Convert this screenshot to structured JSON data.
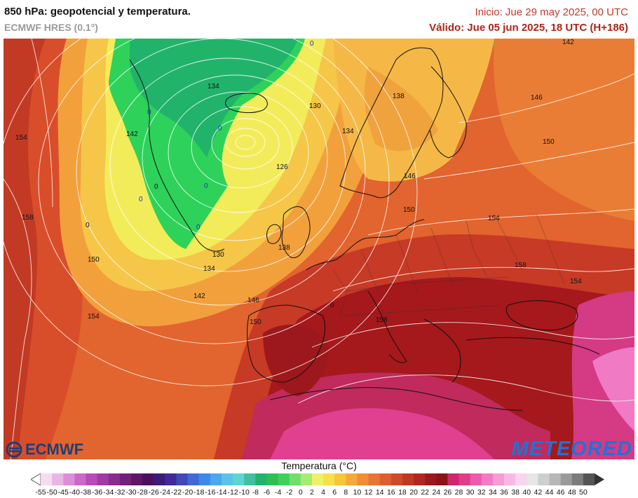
{
  "header": {
    "title": "850 hPa: geopotencial y temperatura.",
    "model": "ECMWF HRES (0.1°)",
    "init": "Inicio: Jue 29 may 2025, 00 UTC",
    "valid": "Válido: Jue 05 jun 2025, 18 UTC (H+186)"
  },
  "map": {
    "region": "Europe / North Atlantic",
    "contour_labels": [
      "142",
      "134",
      "130",
      "138",
      "146",
      "150",
      "134",
      "142",
      "126",
      "150",
      "158",
      "154",
      "154",
      "158",
      "146",
      "150",
      "154",
      "130",
      "134",
      "138",
      "142",
      "146",
      "150",
      "154",
      "158",
      "0",
      "0",
      "0",
      "0",
      "0",
      "0"
    ],
    "palette": {
      "ocean_green": "#2ed25a",
      "yellow": "#f3ec5a",
      "orange": "#f29a3a",
      "red_orange": "#e0512a",
      "dark_red": "#a5181c",
      "magenta": "#e0408f",
      "land_lines": "#111111",
      "isolines": "#ffffff"
    }
  },
  "logos": {
    "ecmwf": "ECMWF",
    "meteored": "METEORED"
  },
  "colorbar": {
    "title": "Temperatura (°C)",
    "labels": [
      "-55",
      "-50",
      "-45",
      "-40",
      "-38",
      "-36",
      "-34",
      "-32",
      "-30",
      "-28",
      "-26",
      "-24",
      "-22",
      "-20",
      "-18",
      "-16",
      "-14",
      "-12",
      "-10",
      "-8",
      "-6",
      "-4",
      "-2",
      "0",
      "2",
      "4",
      "6",
      "8",
      "10",
      "12",
      "14",
      "16",
      "18",
      "20",
      "22",
      "24",
      "26",
      "28",
      "30",
      "32",
      "34",
      "36",
      "38",
      "40",
      "42",
      "44",
      "46",
      "48",
      "50"
    ],
    "colors": [
      "#f3dcf0",
      "#e8b6e3",
      "#dc8fd6",
      "#cc68c7",
      "#b94ab6",
      "#a23aa3",
      "#8a2c8d",
      "#742079",
      "#5e1766",
      "#4a1060",
      "#3e1a78",
      "#3f2a98",
      "#3f49b8",
      "#3e6ad8",
      "#3e8ae8",
      "#4ba8ec",
      "#5bc3e8",
      "#5cd6d0",
      "#3fc1a0",
      "#22b36b",
      "#2bbf56",
      "#3dd15a",
      "#6ee06a",
      "#a9ea70",
      "#eef06a",
      "#f6df4c",
      "#f7c43a",
      "#f4a93a",
      "#f08d36",
      "#e87530",
      "#df5f2c",
      "#d14a28",
      "#c23724",
      "#b02620",
      "#9c181c",
      "#8a1218",
      "#d0276b",
      "#e23c8c",
      "#ee5aac",
      "#f47ac4",
      "#f79ad6",
      "#f8b8e4",
      "#fad4ee",
      "#e6e6e6",
      "#cfcfcf",
      "#b7b7b7",
      "#9a9a9a",
      "#7c7c7c",
      "#555555"
    ]
  }
}
